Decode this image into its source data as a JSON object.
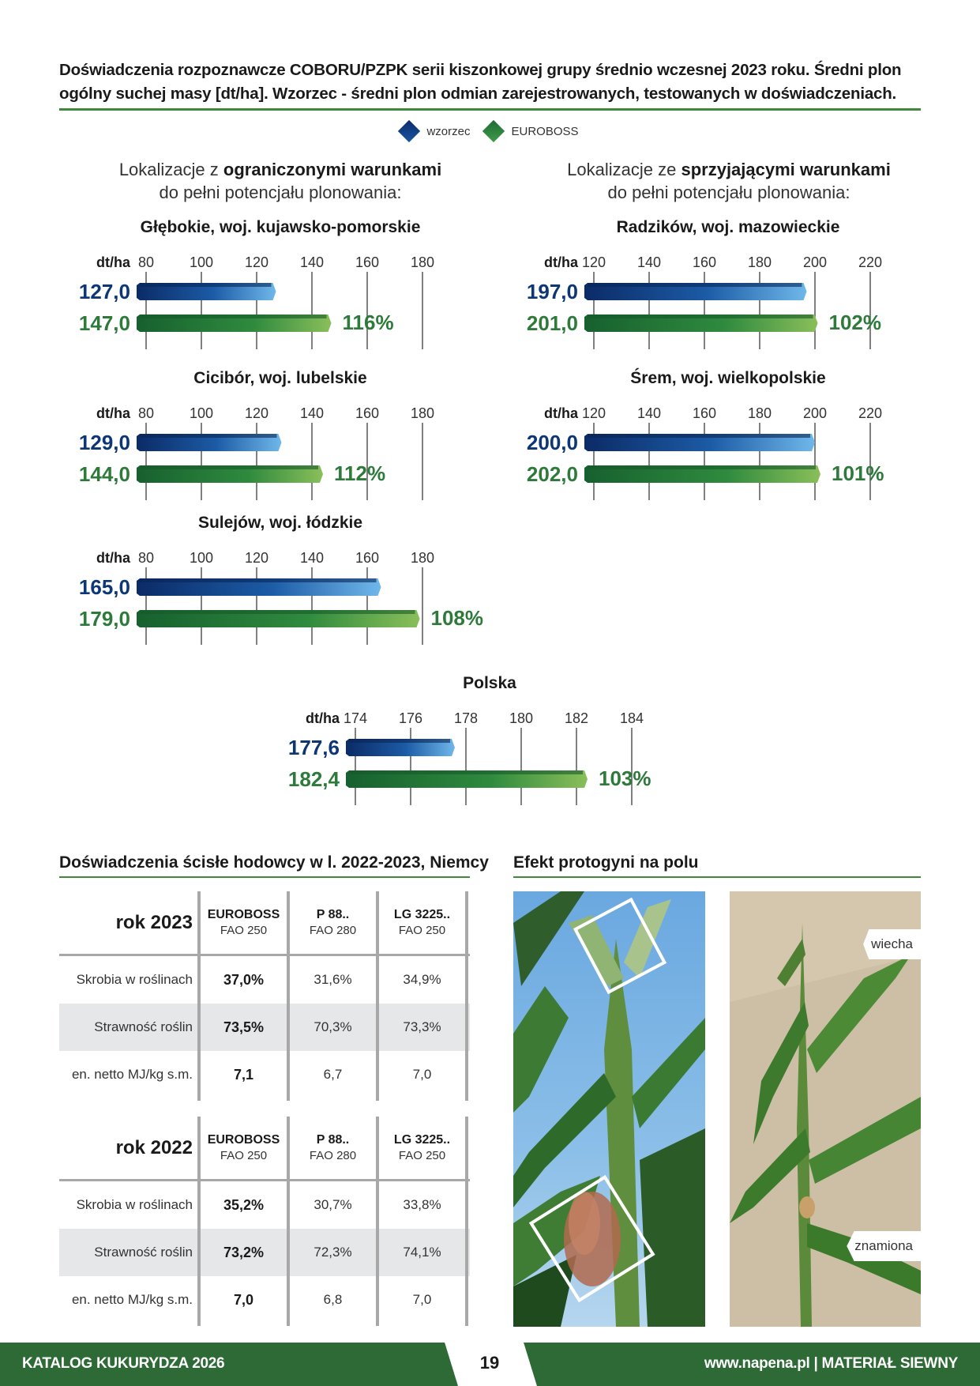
{
  "title": "Doświadczenia rozpoznawcze COBORU/PZPK serii kiszonkowej grupy średnio wczesnej 2023 roku. Średni plon ogólny suchej masy [dt/ha]. Wzorzec - średni plon odmian zarejestrowanych, testowanych w doświadczeniach.",
  "legend": {
    "wzorzec": "wzorzec",
    "euroboss": "EUROBOSS"
  },
  "colors": {
    "blue": "#0d3677",
    "green": "#2d7a3a",
    "title_green": "#3e8a3a"
  },
  "left_head": {
    "l1_a": "Lokalizacje z ",
    "l1_b": "ograniczonymi warunkami",
    "l2": "do pełni potencjału plonowania:"
  },
  "right_head": {
    "l1_a": "Lokalizacje ze ",
    "l1_b": "sprzyjającymi warunkami",
    "l2": "do pełni potencjału plonowania:"
  },
  "chart_data": [
    {
      "type": "bar",
      "title": "Głębokie, woj. kujawsko-pomorskie",
      "unit": "dt/ha",
      "ticks": [
        80,
        100,
        120,
        140,
        160,
        180
      ],
      "xlim": [
        80,
        180
      ],
      "series": [
        {
          "name": "wzorzec",
          "value": 127.0,
          "label": "127,0"
        },
        {
          "name": "EUROBOSS",
          "value": 147.0,
          "label": "147,0"
        }
      ],
      "percent": "116%"
    },
    {
      "type": "bar",
      "title": "Cicibór, woj. lubelskie",
      "unit": "dt/ha",
      "ticks": [
        80,
        100,
        120,
        140,
        160,
        180
      ],
      "xlim": [
        80,
        180
      ],
      "series": [
        {
          "name": "wzorzec",
          "value": 129.0,
          "label": "129,0"
        },
        {
          "name": "EUROBOSS",
          "value": 144.0,
          "label": "144,0"
        }
      ],
      "percent": "112%"
    },
    {
      "type": "bar",
      "title": "Sulejów, woj. łódzkie",
      "unit": "dt/ha",
      "ticks": [
        80,
        100,
        120,
        140,
        160,
        180
      ],
      "xlim": [
        80,
        180
      ],
      "series": [
        {
          "name": "wzorzec",
          "value": 165.0,
          "label": "165,0"
        },
        {
          "name": "EUROBOSS",
          "value": 179.0,
          "label": "179,0"
        }
      ],
      "percent": "108%"
    },
    {
      "type": "bar",
      "title": "Radzików, woj. mazowieckie",
      "unit": "dt/ha",
      "ticks": [
        120,
        140,
        160,
        180,
        200,
        220
      ],
      "xlim": [
        120,
        220
      ],
      "series": [
        {
          "name": "wzorzec",
          "value": 197.0,
          "label": "197,0"
        },
        {
          "name": "EUROBOSS",
          "value": 201.0,
          "label": "201,0"
        }
      ],
      "percent": "102%"
    },
    {
      "type": "bar",
      "title": "Śrem, woj. wielkopolskie",
      "unit": "dt/ha",
      "ticks": [
        120,
        140,
        160,
        180,
        200,
        220
      ],
      "xlim": [
        120,
        220
      ],
      "series": [
        {
          "name": "wzorzec",
          "value": 200.0,
          "label": "200,0"
        },
        {
          "name": "EUROBOSS",
          "value": 202.0,
          "label": "202,0"
        }
      ],
      "percent": "101%"
    },
    {
      "type": "bar",
      "title": "Polska",
      "unit": "dt/ha",
      "ticks": [
        174,
        176,
        178,
        180,
        182,
        184
      ],
      "xlim": [
        174,
        184
      ],
      "series": [
        {
          "name": "wzorzec",
          "value": 177.6,
          "label": "177,6"
        },
        {
          "name": "EUROBOSS",
          "value": 182.4,
          "label": "182,4"
        }
      ],
      "percent": "103%"
    }
  ],
  "table_title": "Doświadczenia ścisłe hodowcy w l. 2022-2023, Niemcy",
  "tables": [
    {
      "year": "rok 2023",
      "cols": [
        {
          "name": "EUROBOSS",
          "fao": "FAO 250"
        },
        {
          "name": "P 88..",
          "fao": "FAO 280"
        },
        {
          "name": "LG 3225..",
          "fao": "FAO 250"
        }
      ],
      "rows": [
        {
          "label": "Skrobia w roślinach",
          "v1": "37,0%",
          "v2": "31,6%",
          "v3": "34,9%"
        },
        {
          "label": "Strawność roślin",
          "v1": "73,5%",
          "v2": "70,3%",
          "v3": "73,3%"
        },
        {
          "label": "en. netto MJ/kg s.m.",
          "v1": "7,1",
          "v2": "6,7",
          "v3": "7,0"
        }
      ]
    },
    {
      "year": "rok 2022",
      "cols": [
        {
          "name": "EUROBOSS",
          "fao": "FAO 250"
        },
        {
          "name": "P 88..",
          "fao": "FAO 280"
        },
        {
          "name": "LG 3225..",
          "fao": "FAO 250"
        }
      ],
      "rows": [
        {
          "label": "Skrobia w roślinach",
          "v1": "35,2%",
          "v2": "30,7%",
          "v3": "33,8%"
        },
        {
          "label": "Strawność roślin",
          "v1": "73,2%",
          "v2": "72,3%",
          "v3": "74,1%"
        },
        {
          "label": "en. netto MJ/kg s.m.",
          "v1": "7,0",
          "v2": "6,8",
          "v3": "7,0"
        }
      ]
    }
  ],
  "photo_title": "Efekt protogyni na polu",
  "photo_labels": {
    "top": "wiecha",
    "bottom": "znamiona"
  },
  "footer": {
    "left": "KATALOG KUKURYDZA 2026",
    "page": "19",
    "right": "www.napena.pl | MATERIAŁ SIEWNY"
  }
}
